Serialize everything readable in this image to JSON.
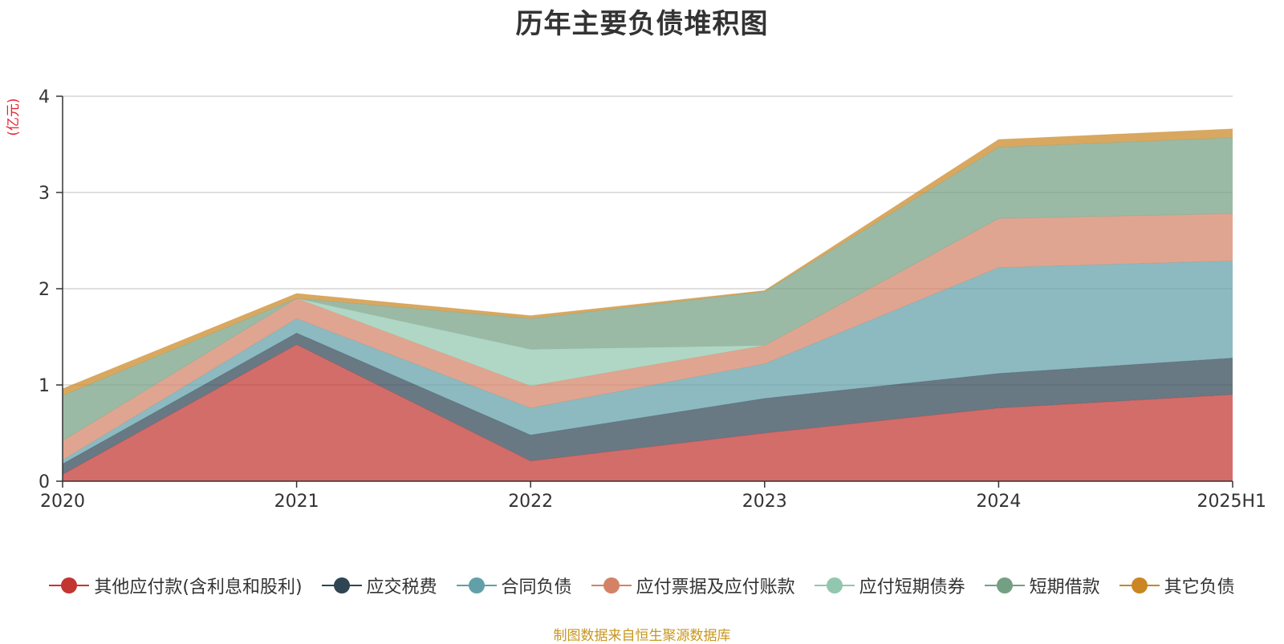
{
  "chart_data": {
    "type": "area",
    "stacked": true,
    "title": "历年主要负债堆积图",
    "unit_label": "(亿元)",
    "categories": [
      "2020",
      "2021",
      "2022",
      "2023",
      "2024",
      "2025H1"
    ],
    "ylim": [
      0,
      4
    ],
    "yticks": [
      "0",
      "1",
      "2",
      "3",
      "4"
    ],
    "grid": true,
    "legend_position": "bottom",
    "series": [
      {
        "name": "其他应付款(含利息和股利)",
        "color": "#c23531",
        "values": [
          0.07,
          1.42,
          0.21,
          0.5,
          0.76,
          0.9
        ]
      },
      {
        "name": "应交税费",
        "color": "#2f4554",
        "values": [
          0.11,
          0.12,
          0.27,
          0.36,
          0.36,
          0.38
        ]
      },
      {
        "name": "合同负债",
        "color": "#61a0a8",
        "values": [
          0.04,
          0.15,
          0.28,
          0.36,
          1.1,
          1.01
        ]
      },
      {
        "name": "应付票据及应付账款",
        "color": "#d48265",
        "values": [
          0.2,
          0.21,
          0.23,
          0.19,
          0.51,
          0.49
        ]
      },
      {
        "name": "应付短期债券",
        "color": "#91c7ae",
        "values": [
          0.0,
          0.0,
          0.38,
          0.0,
          0.0,
          0.0
        ]
      },
      {
        "name": "短期借款",
        "color": "#749f83",
        "values": [
          0.47,
          0.0,
          0.32,
          0.56,
          0.74,
          0.79
        ]
      },
      {
        "name": "其它负债",
        "color": "#ca8622",
        "values": [
          0.07,
          0.05,
          0.03,
          0.01,
          0.08,
          0.09
        ]
      }
    ]
  },
  "source_note": "制图数据来自恒生聚源数据库"
}
